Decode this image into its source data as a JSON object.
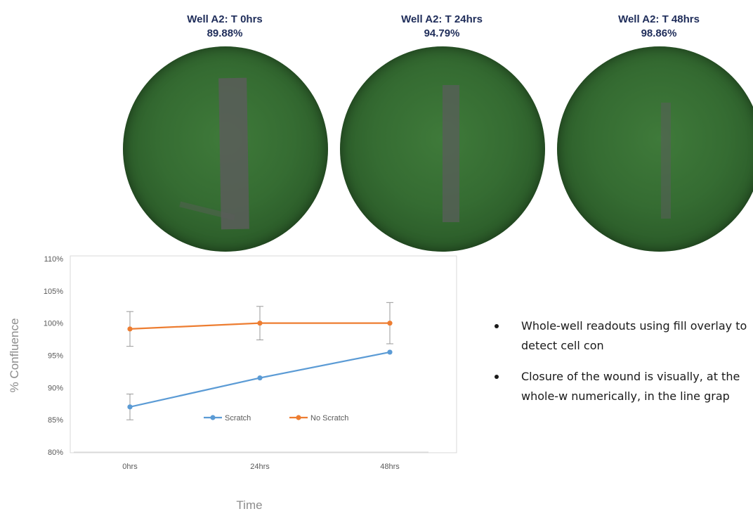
{
  "wells": [
    {
      "title": "Well A2: T 0hrs",
      "percent": "89.88%"
    },
    {
      "title": "Well A2: T 24hrs",
      "percent": "94.79%"
    },
    {
      "title": "Well A2: T 48hrs",
      "percent": "98.86%"
    }
  ],
  "bullets": [
    "Whole-well readouts using fill overlay to detect cell con",
    "Closure of the wound is visually, at the whole-w numerically, in the line grap"
  ],
  "chart_data": {
    "type": "line",
    "categories": [
      "0hrs",
      "24hrs",
      "48hrs"
    ],
    "xlabel": "Time",
    "ylabel": "% Confluence",
    "ylim": [
      0.8,
      1.1
    ],
    "yticks": [
      "80%",
      "85%",
      "90%",
      "95%",
      "100%",
      "105%",
      "110%"
    ],
    "grid": false,
    "legend_position": "bottom-center",
    "series": [
      {
        "name": "Scratch",
        "color": "#5b9bd5",
        "values": [
          0.87,
          0.915,
          0.955
        ],
        "error": [
          0.02,
          0.0,
          0.0
        ]
      },
      {
        "name": "No Scratch",
        "color": "#ed7d31",
        "values": [
          0.991,
          1.0,
          1.0
        ],
        "error": [
          0.027,
          0.026,
          0.032
        ]
      }
    ]
  }
}
